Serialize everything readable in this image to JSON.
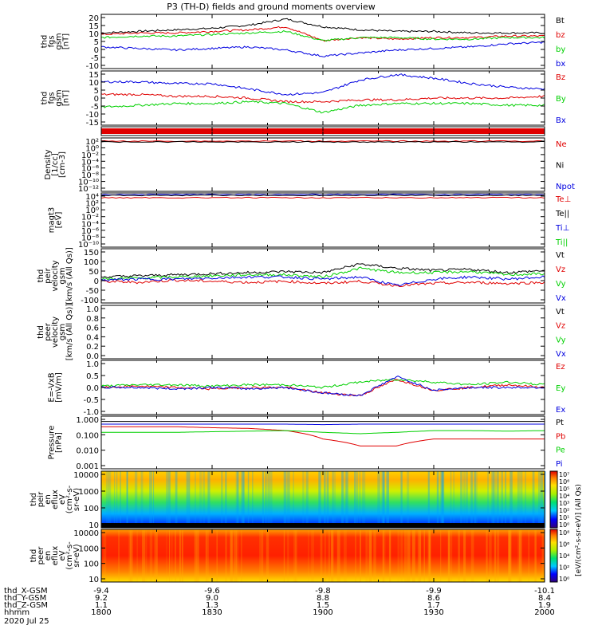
{
  "title": "P3 (TH-D) fields and ground moments overview",
  "colors": {
    "black": "#000000",
    "red": "#e00000",
    "green": "#00d000",
    "blue": "#0000e0"
  },
  "panels": [
    {
      "ylabel": [
        "thd",
        "fgs",
        "gsm",
        "[nT]"
      ],
      "ticks": [
        "20",
        "15",
        "10",
        "5",
        "0",
        "-5",
        "-10"
      ],
      "legend": [
        {
          "t": "Bt",
          "c": "#000000"
        },
        {
          "t": "bz",
          "c": "#e00000"
        },
        {
          "t": "by",
          "c": "#00d000"
        },
        {
          "t": "bx",
          "c": "#0000e0"
        }
      ]
    },
    {
      "ylabel": [
        "thd",
        "fgs",
        "gsm",
        "[nT]"
      ],
      "ticks": [
        "15",
        "10",
        "5",
        "0",
        "-5",
        "-10",
        "-15"
      ],
      "legend": [
        {
          "t": "Bz",
          "c": "#e00000"
        },
        {
          "t": "By",
          "c": "#00d000"
        },
        {
          "t": "Bx",
          "c": "#0000e0"
        }
      ]
    },
    {
      "ylabel": [],
      "ticks": [],
      "legend": []
    },
    {
      "ylabel": [
        "Density",
        "[1/cc]",
        "[cm-3]"
      ],
      "ticks": [
        "10²",
        "10⁰",
        "10⁻²",
        "10⁻⁴",
        "10⁻⁶",
        "10⁻⁸",
        "10⁻¹⁰",
        "10⁻¹²"
      ],
      "legend": [
        {
          "t": "Ne",
          "c": "#e00000"
        },
        {
          "t": "Ni",
          "c": "#000000"
        },
        {
          "t": "Npot",
          "c": "#0000e0"
        }
      ]
    },
    {
      "ylabel": [
        "magt3",
        "[eV]"
      ],
      "ticks": [
        "10⁴",
        "10²",
        "10⁰",
        "10⁻²",
        "10⁻⁴",
        "10⁻⁶",
        "10⁻⁸",
        "10⁻¹⁰"
      ],
      "legend": [
        {
          "t": "Te⊥",
          "c": "#e00000"
        },
        {
          "t": "Te||",
          "c": "#000000"
        },
        {
          "t": "Ti⊥",
          "c": "#0000e0"
        },
        {
          "t": "Ti||",
          "c": "#00d000"
        }
      ]
    },
    {
      "ylabel": [
        "thd",
        "peir",
        "velocity",
        "gsm",
        "[km/s (All Qs)]"
      ],
      "ticks": [
        "150",
        "100",
        "50",
        "0",
        "-50",
        "-100"
      ],
      "legend": [
        {
          "t": "Vt",
          "c": "#000000"
        },
        {
          "t": "Vz",
          "c": "#e00000"
        },
        {
          "t": "Vy",
          "c": "#00d000"
        },
        {
          "t": "Vx",
          "c": "#0000e0"
        }
      ]
    },
    {
      "ylabel": [
        "thd",
        "peer",
        "velocity",
        "gsm",
        "[km/s (All Qs)]"
      ],
      "ticks": [
        "1.0",
        "0.8",
        "0.6",
        "0.4",
        "0.2",
        "0.0"
      ],
      "legend": [
        {
          "t": "Vt",
          "c": "#000000"
        },
        {
          "t": "Vz",
          "c": "#e00000"
        },
        {
          "t": "Vy",
          "c": "#00d000"
        },
        {
          "t": "Vx",
          "c": "#0000e0"
        }
      ]
    },
    {
      "ylabel": [
        "E=-VxB",
        "[mV/m]"
      ],
      "ticks": [
        "1.0",
        "0.5",
        "0.0",
        "-0.5",
        "-1.0"
      ],
      "legend": [
        {
          "t": "Ez",
          "c": "#e00000"
        },
        {
          "t": "Ey",
          "c": "#00d000"
        },
        {
          "t": "Ex",
          "c": "#0000e0"
        }
      ]
    },
    {
      "ylabel": [
        "Pressure",
        "[nPa]"
      ],
      "ticks": [
        "1.000",
        "0.100",
        "0.010",
        "0.001"
      ],
      "legend": [
        {
          "t": "Pt",
          "c": "#000000"
        },
        {
          "t": "Pb",
          "c": "#e00000"
        },
        {
          "t": "Pe",
          "c": "#00d000"
        },
        {
          "t": "Pi",
          "c": "#0000e0"
        }
      ]
    },
    {
      "ylabel": [
        "thd",
        "peir",
        "en",
        "eflux",
        "eV",
        "(cm²-s-",
        "sr-eV)"
      ],
      "ticks": [
        "10000",
        "1000",
        "100",
        "10"
      ],
      "legend": []
    },
    {
      "ylabel": [
        "thd",
        "peer",
        "en",
        "eflux",
        "eV",
        "(cm²-s-",
        "sr-eV)"
      ],
      "ticks": [
        "10000",
        "1000",
        "100",
        "10"
      ],
      "legend": []
    }
  ],
  "colorbars": [
    {
      "labels": [
        "10⁷",
        "10⁶",
        "10⁵",
        "10⁴",
        "10³",
        "10²",
        "10¹",
        "10⁰"
      ]
    },
    {
      "labels": [
        "10⁸",
        "10⁶",
        "10⁴",
        "10²",
        "10⁰"
      ]
    }
  ],
  "colorbar_title": "[eV/(cm²-s-sr-eV)] (All Qs)",
  "xaxis": {
    "row_labels": [
      "thd_X-GSM",
      "thd_Y-GSM",
      "thd_Z-GSM",
      "hhmm",
      "2020 Jul 25"
    ],
    "columns": [
      {
        "X": "-9.4",
        "Y": "9.2",
        "Z": "1.1",
        "hhmm": "1800"
      },
      {
        "X": "-9.6",
        "Y": "9.0",
        "Z": "1.3",
        "hhmm": "1830"
      },
      {
        "X": "-9.8",
        "Y": "8.8",
        "Z": "1.5",
        "hhmm": "1900"
      },
      {
        "X": "-9.9",
        "Y": "8.6",
        "Z": "1.7",
        "hhmm": "1930"
      },
      {
        "X": "-10.1",
        "Y": "8.4",
        "Z": "1.9",
        "hhmm": "2000"
      }
    ]
  },
  "chart_data": {
    "type": "line",
    "title": "P3 (TH-D) fields and ground moments overview",
    "x": {
      "label": "hhmm",
      "ticks": [
        "1800",
        "1830",
        "1900",
        "1930",
        "2000"
      ],
      "range": [
        "1800",
        "2000"
      ]
    },
    "series_groups": [
      {
        "panel": "thd fgs gsm [nT]",
        "ylim": [
          -15,
          20
        ],
        "series": [
          {
            "name": "Bt",
            "color": "#000000",
            "values": [
              8,
              9,
              10,
              11,
              13,
              17,
              12,
              10,
              9,
              9,
              8,
              8,
              8
            ]
          },
          {
            "name": "bz",
            "color": "#e00000",
            "values": [
              7,
              8,
              8,
              9,
              10,
              12,
              3,
              5,
              4,
              5,
              5,
              6,
              6
            ]
          },
          {
            "name": "by",
            "color": "#00d000",
            "values": [
              5,
              6,
              6,
              7,
              8,
              9,
              3,
              5,
              5,
              4,
              4,
              5,
              5
            ]
          },
          {
            "name": "bx",
            "color": "#0000e0",
            "values": [
              -1,
              -2,
              -3,
              -2,
              -1,
              -3,
              -7,
              -5,
              -3,
              -2,
              -1,
              1,
              2
            ]
          }
        ]
      },
      {
        "panel": "thd fgs gsm [nT] (2)",
        "ylim": [
          -15,
          15
        ],
        "series": [
          {
            "name": "Bz",
            "color": "#e00000",
            "values": [
              2,
              2,
              1,
              1,
              0,
              -2,
              -2,
              -1,
              -1,
              0,
              0,
              0,
              1
            ]
          },
          {
            "name": "By",
            "color": "#00d000",
            "values": [
              -5,
              -4,
              -3,
              -3,
              -2,
              -3,
              -8,
              -4,
              -3,
              -3,
              -3,
              -4,
              -4
            ]
          },
          {
            "name": "Bx",
            "color": "#0000e0",
            "values": [
              9,
              9,
              8,
              8,
              5,
              2,
              3,
              10,
              13,
              11,
              8,
              6,
              5
            ]
          }
        ]
      },
      {
        "panel": "thd peir velocity gsm [km/s (All Qs)]",
        "ylim": [
          -100,
          150
        ],
        "series": [
          {
            "name": "Vt",
            "color": "#000000",
            "values": [
              20,
              25,
              30,
              35,
              40,
              45,
              40,
              80,
              60,
              50,
              55,
              40,
              50
            ]
          },
          {
            "name": "Vz",
            "color": "#e00000",
            "values": [
              0,
              -5,
              5,
              0,
              -5,
              0,
              -10,
              0,
              -20,
              -10,
              -5,
              -10,
              -5
            ]
          },
          {
            "name": "Vy",
            "color": "#00d000",
            "values": [
              10,
              15,
              20,
              25,
              30,
              30,
              20,
              60,
              40,
              40,
              45,
              30,
              35
            ]
          },
          {
            "name": "Vx",
            "color": "#0000e0",
            "values": [
              5,
              10,
              10,
              15,
              20,
              20,
              10,
              20,
              -20,
              10,
              20,
              10,
              20
            ]
          }
        ]
      },
      {
        "panel": "E=-VxB [mV/m]",
        "ylim": [
          -1.0,
          1.0
        ],
        "series": [
          {
            "name": "Ez",
            "color": "#e00000",
            "values": [
              0.0,
              0.05,
              0.0,
              -0.05,
              0.0,
              0.0,
              -0.2,
              -0.3,
              0.3,
              -0.1,
              0.0,
              0.1,
              0.0
            ]
          },
          {
            "name": "Ey",
            "color": "#00d000",
            "values": [
              0.05,
              0.1,
              0.1,
              0.05,
              0.1,
              0.1,
              0.0,
              0.2,
              0.3,
              0.2,
              0.1,
              0.2,
              0.1
            ]
          },
          {
            "name": "Ex",
            "color": "#0000e0",
            "values": [
              0.0,
              0.0,
              -0.05,
              0.0,
              -0.05,
              0.0,
              -0.2,
              -0.3,
              0.4,
              -0.1,
              0.0,
              0.0,
              0.0
            ]
          }
        ]
      },
      {
        "panel": "Pressure [nPa]",
        "ylim": [
          0.001,
          1.0
        ],
        "scale": "log",
        "series": [
          {
            "name": "Pt",
            "color": "#000000",
            "values": [
              0.5,
              0.5,
              0.5,
              0.5,
              0.5,
              0.5,
              0.5,
              0.5,
              0.5,
              0.5,
              0.5,
              0.5,
              0.5
            ]
          },
          {
            "name": "Pb",
            "color": "#e00000",
            "values": [
              0.25,
              0.25,
              0.25,
              0.22,
              0.2,
              0.15,
              0.05,
              0.02,
              0.02,
              0.05,
              0.05,
              0.05,
              0.05
            ]
          },
          {
            "name": "Pe",
            "color": "#00d000",
            "values": [
              0.12,
              0.12,
              0.12,
              0.13,
              0.14,
              0.15,
              0.12,
              0.1,
              0.12,
              0.15,
              0.15,
              0.14,
              0.15
            ]
          },
          {
            "name": "Pi",
            "color": "#0000e0",
            "values": [
              0.35,
              0.35,
              0.35,
              0.35,
              0.35,
              0.35,
              0.33,
              0.35,
              0.35,
              0.35,
              0.35,
              0.35,
              0.35
            ]
          }
        ]
      }
    ]
  }
}
